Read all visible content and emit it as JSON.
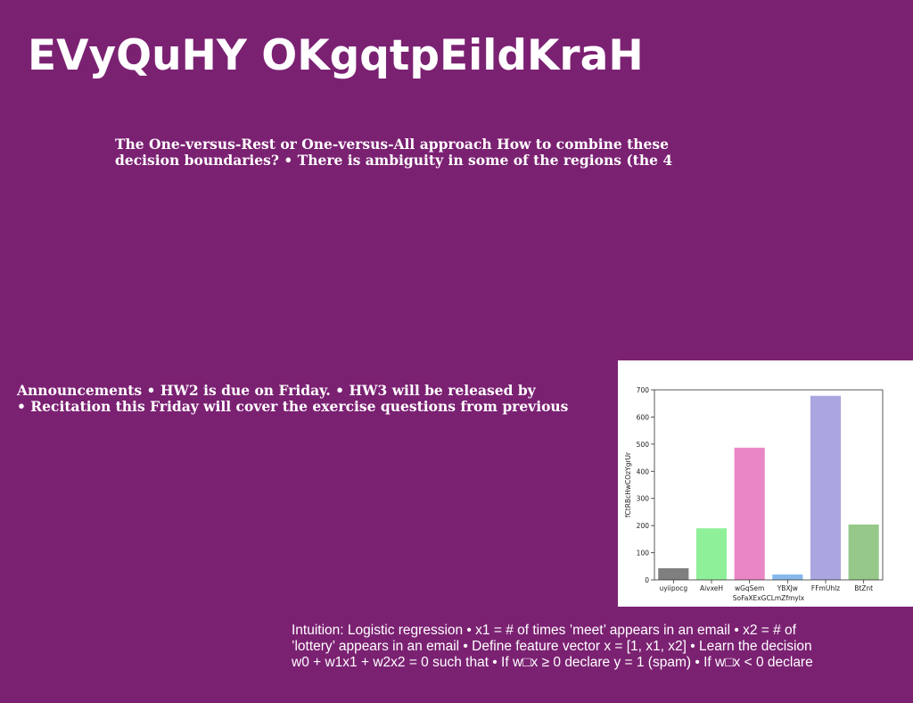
{
  "title": "EVyQuHY OKgqtpEildKraH",
  "blocks": {
    "ovr": {
      "lines": [
        "The One-versus-Rest or One-versus-All approach How to combine these",
        "decision boundaries? • There is ambiguity in some of the regions (the 4"
      ]
    },
    "announcements": {
      "lines": [
        "Announcements • HW2 is due on Friday. • HW3 will be released by",
        "• Recitation this Friday will cover the exercise questions from previous"
      ]
    },
    "intuition": {
      "lines": [
        "Intuition: Logistic regression • x1 = # of times ’meet’ appears in an email • x2 = # of",
        "’lottery’ appears in an email • Define feature vector x = [1, x1, x2] • Learn the decision",
        "w0 + w1x1 + w2x2 = 0 such that • If w□x ≥ 0 declare y = 1 (spam) • If w□x < 0 declare"
      ]
    }
  },
  "chart_data": {
    "type": "bar",
    "categories": [
      "uyiipocg",
      "AivxeH",
      "wGqSem",
      "YBXJw",
      "FFmUhlz",
      "BtZnt"
    ],
    "values": [
      43,
      190,
      487,
      20,
      678,
      204
    ],
    "colors": [
      "#7f7f7f",
      "#8ff09a",
      "#ea86c6",
      "#86b8ee",
      "#aba6e2",
      "#96c889"
    ],
    "xlabel": "SoFaXExGCLmZfmylx",
    "ylabel": "fCtRBcHwCOzYgrUr",
    "ylim": [
      0,
      700
    ],
    "yticks": [
      0,
      100,
      200,
      300,
      400,
      500,
      600,
      700
    ],
    "grid": false
  }
}
